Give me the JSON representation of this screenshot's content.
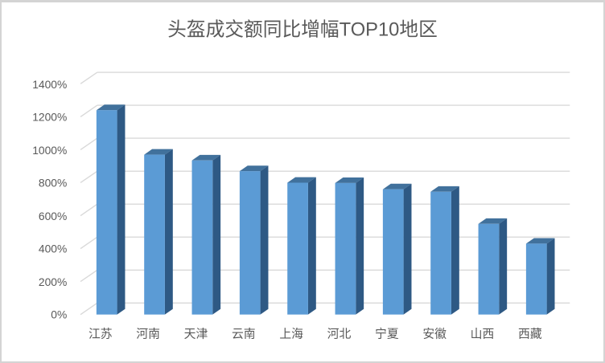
{
  "chart_data": {
    "type": "bar",
    "style": "3d-column",
    "title": "头盔成交额同比增幅TOP10地区",
    "categories": [
      "江苏",
      "河南",
      "天津",
      "云南",
      "上海",
      "河北",
      "宁夏",
      "安徽",
      "山西",
      "西藏"
    ],
    "values": [
      1240,
      970,
      935,
      870,
      800,
      798,
      760,
      745,
      550,
      430
    ],
    "unit": "%",
    "yticks": [
      "1400%",
      "1200%",
      "1000%",
      "800%",
      "600%",
      "400%",
      "200%",
      "0%"
    ],
    "ylabel": "",
    "xlabel": "",
    "ylim": [
      0,
      1400
    ],
    "ytick_step": 200,
    "grid": true,
    "legend": "none",
    "colors": {
      "bar_front": "#5b9bd5",
      "bar_top": "#41719c",
      "bar_side": "#2e5984",
      "gridline": "#d9d9d9",
      "text": "#595959",
      "background": "#ffffff",
      "border": "#d4d4d4"
    }
  }
}
